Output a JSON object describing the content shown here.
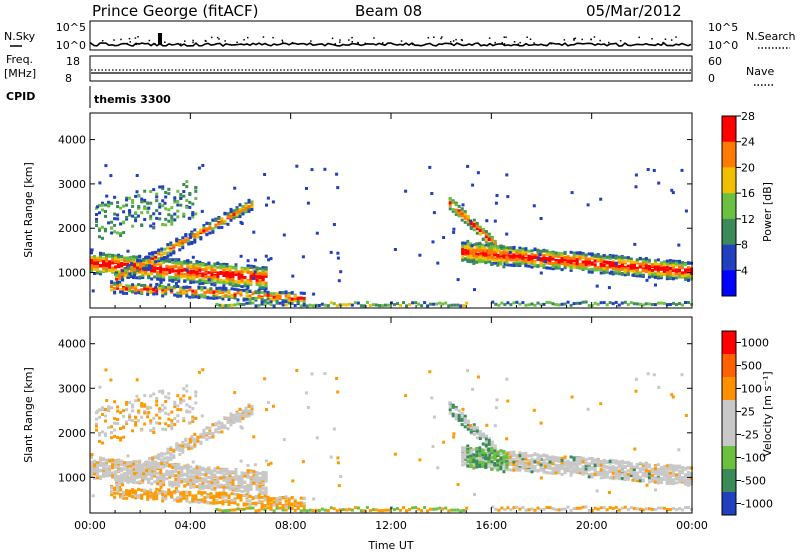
{
  "header": {
    "station": "Prince George (fitACF)",
    "beam": "Beam 08",
    "date": "05/Mar/2012"
  },
  "top_panels": {
    "nsky_label": "N.Sky",
    "nsky_ticks": [
      "10^5",
      "10^0"
    ],
    "nsearch_label": "N.Search",
    "nsearch_ticks": [
      "10^5",
      "10^0"
    ],
    "freq_label_1": "Freq.",
    "freq_label_2": "[MHz]",
    "freq_ticks": [
      "18",
      "8"
    ],
    "nave_label": "Nave",
    "nave_ticks": [
      "60",
      "0"
    ],
    "cpid_label": "CPID",
    "cpid_value": "themis 3300"
  },
  "chart_data": [
    {
      "type": "heatmap",
      "name": "power",
      "ylabel": "Slant Range [km]",
      "yticks": [
        "1000",
        "2000",
        "3000",
        "4000"
      ],
      "ylim": [
        200,
        4600
      ],
      "xlabel": "Time UT",
      "xticks": [
        "00:00",
        "04:00",
        "08:00",
        "12:00",
        "16:00",
        "20:00",
        "00:00"
      ],
      "xlim_hours": [
        0,
        24
      ],
      "colorbar_label": "Power [dB]",
      "colorbar_ticks": [
        "4",
        "8",
        "12",
        "16",
        "20",
        "24",
        "28"
      ],
      "colorbar_colors": [
        "#0000ff",
        "#2040c0",
        "#3a8a5a",
        "#6cc040",
        "#f0c000",
        "#ff7a00",
        "#ff0000"
      ]
    },
    {
      "type": "heatmap",
      "name": "velocity",
      "ylabel": "Slant Range [km]",
      "yticks": [
        "1000",
        "2000",
        "3000",
        "4000"
      ],
      "ylim": [
        200,
        4600
      ],
      "xlabel": "Time UT",
      "xticks": [
        "00:00",
        "04:00",
        "08:00",
        "12:00",
        "16:00",
        "20:00",
        "00:00"
      ],
      "xlim_hours": [
        0,
        24
      ],
      "colorbar_label": "Velocity [m s^-1]",
      "colorbar_ticks": [
        "1000",
        "500",
        "100",
        "25",
        "-25",
        "-100",
        "-500",
        "-1000"
      ],
      "colorbar_colors": [
        "#2040c0",
        "#3a8a5a",
        "#6cc040",
        "#c8c8c8",
        "#c8c8c8",
        "#ff9000",
        "#ff6000",
        "#ff0000"
      ]
    }
  ]
}
